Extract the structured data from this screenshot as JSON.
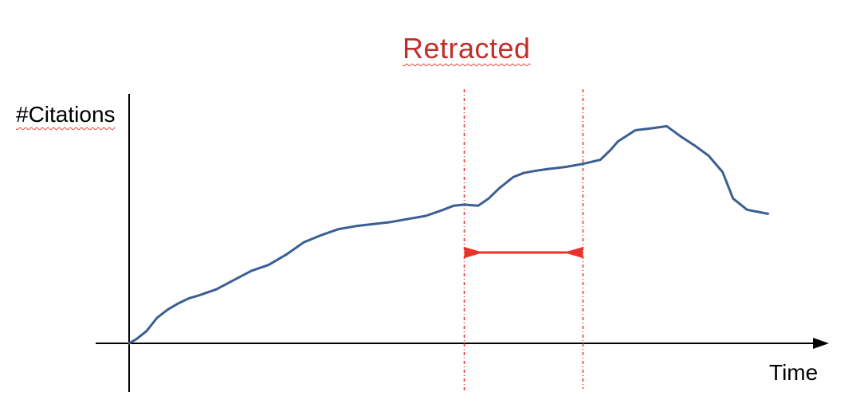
{
  "figure": {
    "title": "Retracted",
    "y_axis_label": "#Citations",
    "x_axis_label": "Time"
  },
  "colors": {
    "curve": "#3a5f93",
    "marker": "#e8322a",
    "title": "#c0302b",
    "axis": "#000000"
  },
  "icons": {
    "x_axis_arrow": "arrowhead-right",
    "interval_arrows": "arrowheads-inward"
  },
  "curve": {
    "x": [
      0.0,
      0.02,
      0.05,
      0.08,
      0.11,
      0.14,
      0.17,
      0.2,
      0.25,
      0.3,
      0.35,
      0.4,
      0.45,
      0.5,
      0.55,
      0.6,
      0.65,
      0.7,
      0.75,
      0.8,
      0.85,
      0.9,
      0.93,
      0.96,
      1.0,
      1.03,
      1.06,
      1.1,
      1.13,
      1.16,
      1.2,
      1.25,
      1.3,
      1.35,
      1.38,
      1.4,
      1.45,
      1.5,
      1.54,
      1.58,
      1.62,
      1.66,
      1.7,
      1.73,
      1.77,
      1.8,
      1.83
    ],
    "y": [
      0.0,
      0.04,
      0.12,
      0.25,
      0.33,
      0.39,
      0.44,
      0.47,
      0.53,
      0.62,
      0.71,
      0.77,
      0.87,
      0.99,
      1.06,
      1.12,
      1.15,
      1.17,
      1.19,
      1.22,
      1.25,
      1.31,
      1.35,
      1.36,
      1.35,
      1.42,
      1.52,
      1.63,
      1.67,
      1.69,
      1.71,
      1.73,
      1.76,
      1.8,
      1.9,
      1.98,
      2.09,
      2.11,
      2.13,
      2.03,
      1.94,
      1.84,
      1.68,
      1.42,
      1.31,
      1.29,
      1.27
    ]
  },
  "retraction_window": {
    "start": 0.96,
    "end": 1.3
  }
}
